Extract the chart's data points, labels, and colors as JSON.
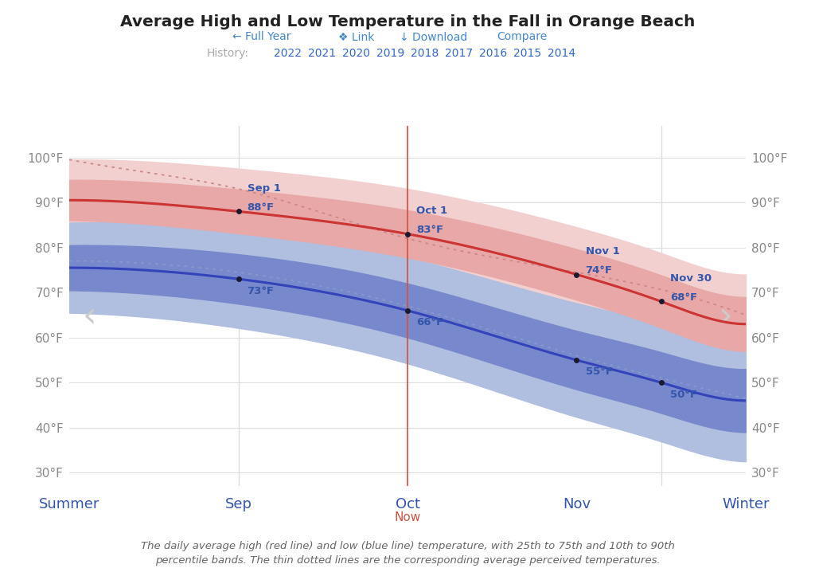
{
  "title": "Average High and Low Temperature in the Fall in Orange Beach",
  "history_years": [
    "2022",
    "2021",
    "2020",
    "2019",
    "2018",
    "2017",
    "2016",
    "2015",
    "2014"
  ],
  "x_labels": [
    "Summer",
    "Sep",
    "Oct",
    "Nov",
    "Winter"
  ],
  "y_ticks": [
    30,
    40,
    50,
    60,
    70,
    80,
    90,
    100
  ],
  "ylim": [
    27,
    107
  ],
  "footnote": "The daily average high (red line) and low (blue line) temperature, with 25th to 75th and 10th to 90th\npercentile bands. The thin dotted lines are the corresponding average perceived temperatures.",
  "bg_color": "#ffffff",
  "grid_color": "#dddddd",
  "axis_label_color": "#888888",
  "x_label_color": "#3355aa",
  "title_color": "#222222",
  "link_color": "#4488cc",
  "history_color": "#aaaaaa",
  "history_year_color": "#3366cc",
  "annotation_color": "#3355aa",
  "now_color": "#cc5544",
  "red_line_color": "#cc3333",
  "blue_line_color": "#3344bb",
  "red_band25_75_color": "#e8a8a8",
  "red_band10_90_color": "#f2d0d0",
  "blue_band25_75_color": "#7788cc",
  "blue_band10_90_color": "#b0bedf",
  "dotted_line_color_red": "#cc8888",
  "dotted_line_color_blue": "#8899cc",
  "nav_arrow_color": "#cccccc"
}
